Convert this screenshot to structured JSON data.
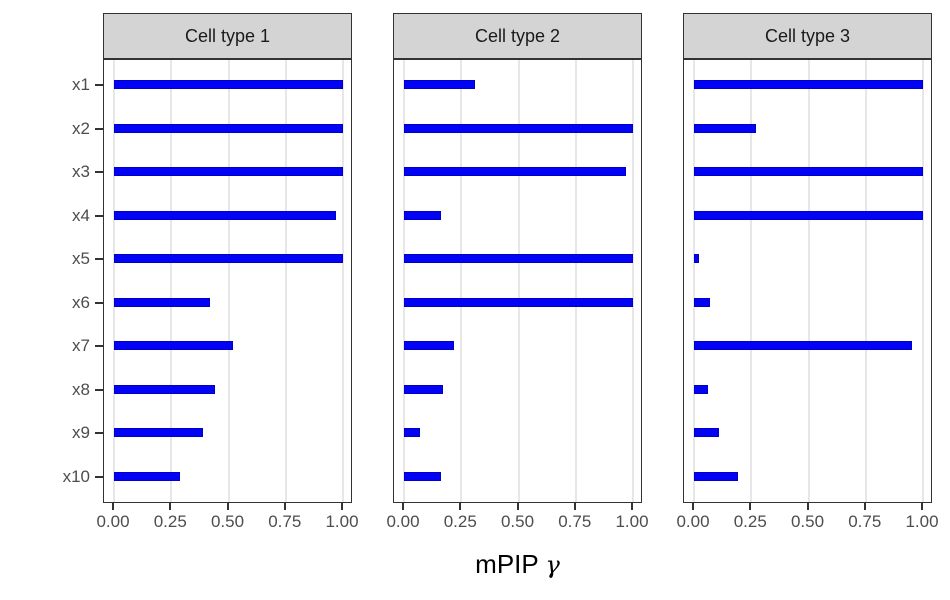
{
  "chart_data": {
    "type": "bar",
    "orientation": "horizontal",
    "facets": [
      {
        "label": "Cell type 1"
      },
      {
        "label": "Cell type 2"
      },
      {
        "label": "Cell type 3"
      }
    ],
    "categories": [
      "x1",
      "x2",
      "x3",
      "x4",
      "x5",
      "x6",
      "x7",
      "x8",
      "x9",
      "x10"
    ],
    "series": [
      {
        "name": "Cell type 1",
        "values": [
          1.0,
          1.0,
          1.0,
          0.97,
          1.0,
          0.42,
          0.52,
          0.44,
          0.39,
          0.29
        ]
      },
      {
        "name": "Cell type 2",
        "values": [
          0.31,
          1.0,
          0.97,
          0.16,
          1.0,
          1.0,
          0.22,
          0.17,
          0.07,
          0.16
        ]
      },
      {
        "name": "Cell type 3",
        "values": [
          1.0,
          0.27,
          1.0,
          1.0,
          0.02,
          0.07,
          0.95,
          0.06,
          0.11,
          0.19
        ]
      }
    ],
    "xlabel": "mPIP γ",
    "xlabel_main": "mPIP",
    "xlabel_symbol": "γ",
    "xlim": [
      0,
      1
    ],
    "xticks": [
      0,
      0.25,
      0.5,
      0.75,
      1
    ],
    "xtick_labels": [
      "0.00",
      "0.25",
      "0.50",
      "0.75",
      "1.00"
    ],
    "grid": "vertical major gridlines only",
    "legend": "none",
    "colors": {
      "bar_fill": "#0202F5",
      "bar_border": "#0000C8",
      "strip_background": "#D4D4D4",
      "panel_border": "#333333",
      "gridline": "#E7E7E7",
      "axis_text": "#4D4D4D",
      "strip_text": "#1A1A1A"
    }
  }
}
